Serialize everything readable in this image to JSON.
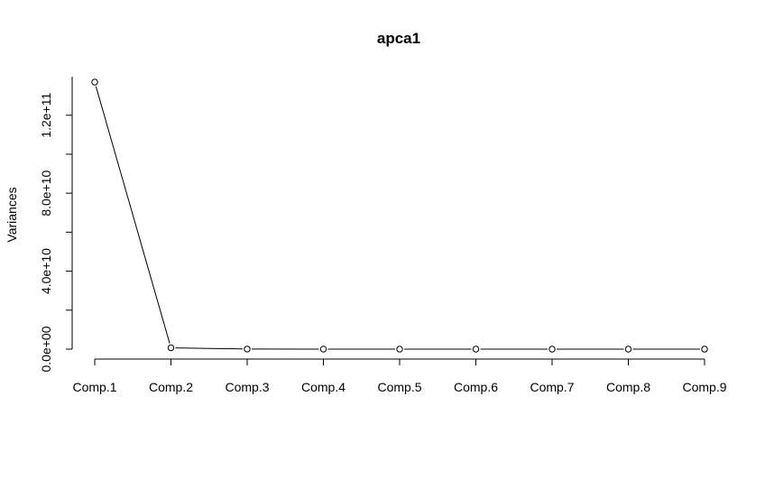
{
  "chart_data": {
    "type": "line",
    "title": "apca1",
    "xlabel": "",
    "ylabel": "Variances",
    "categories": [
      "Comp.1",
      "Comp.2",
      "Comp.3",
      "Comp.4",
      "Comp.5",
      "Comp.6",
      "Comp.7",
      "Comp.8",
      "Comp.9"
    ],
    "series": [
      {
        "values": [
          137000000000,
          700000000,
          50000000,
          20000000,
          10000000,
          5000000,
          3000000,
          2000000,
          1000000
        ]
      }
    ],
    "yticks": [
      0,
      40000000000,
      80000000000,
      120000000000
    ],
    "ytick_labels": [
      "0.0e+00",
      "4.0e+10",
      "8.0e+10",
      "1.2e+11"
    ],
    "ylim": [
      0,
      137000000000
    ],
    "markers": "open-circle",
    "grid": false
  }
}
